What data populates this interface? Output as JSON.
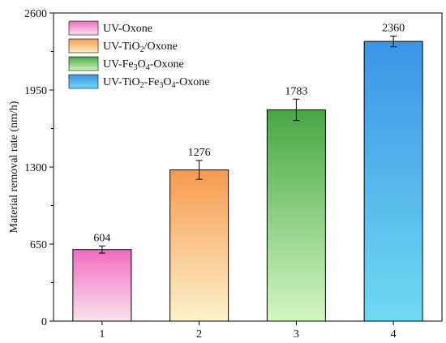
{
  "chart_data": {
    "type": "bar",
    "ylabel": "Material removal rate (nm/h)",
    "xlabel": "",
    "ylim": [
      0,
      2600
    ],
    "yticks": [
      0,
      650,
      1300,
      1950,
      2600
    ],
    "categories": [
      "1",
      "2",
      "3",
      "4"
    ],
    "values": [
      604,
      1276,
      1783,
      2360
    ],
    "errors": [
      30,
      80,
      90,
      45
    ],
    "data_labels": [
      "604",
      "1276",
      "1783",
      "2360"
    ],
    "series_names": [
      "UV-Oxone",
      "UV-TiO2/Oxone",
      "UV-Fe3O4-Oxone",
      "UV-TiO2-Fe3O4-Oxone"
    ],
    "colors": [
      {
        "top": "#f06cc0",
        "bottom": "#f7e3ee"
      },
      {
        "top": "#f79a4f",
        "bottom": "#fbf2cc"
      },
      {
        "top": "#47a644",
        "bottom": "#d3f7c2"
      },
      {
        "top": "#3b95e6",
        "bottom": "#6fd9f2"
      }
    ],
    "legend": {
      "position": "top-left",
      "entries": [
        {
          "label": "UV-Oxone"
        },
        {
          "label_parts": [
            {
              "t": "UV-TiO"
            },
            {
              "t": "2",
              "sub": true
            },
            {
              "t": "/Oxone"
            }
          ]
        },
        {
          "label_parts": [
            {
              "t": "UV-Fe"
            },
            {
              "t": "3",
              "sub": true
            },
            {
              "t": "O"
            },
            {
              "t": "4",
              "sub": true
            },
            {
              "t": "-Oxone"
            }
          ]
        },
        {
          "label_parts": [
            {
              "t": "UV-TiO"
            },
            {
              "t": "2",
              "sub": true
            },
            {
              "t": "-Fe"
            },
            {
              "t": "3",
              "sub": true
            },
            {
              "t": "O"
            },
            {
              "t": "4",
              "sub": true
            },
            {
              "t": "-Oxone"
            }
          ]
        }
      ]
    },
    "grid": false
  }
}
